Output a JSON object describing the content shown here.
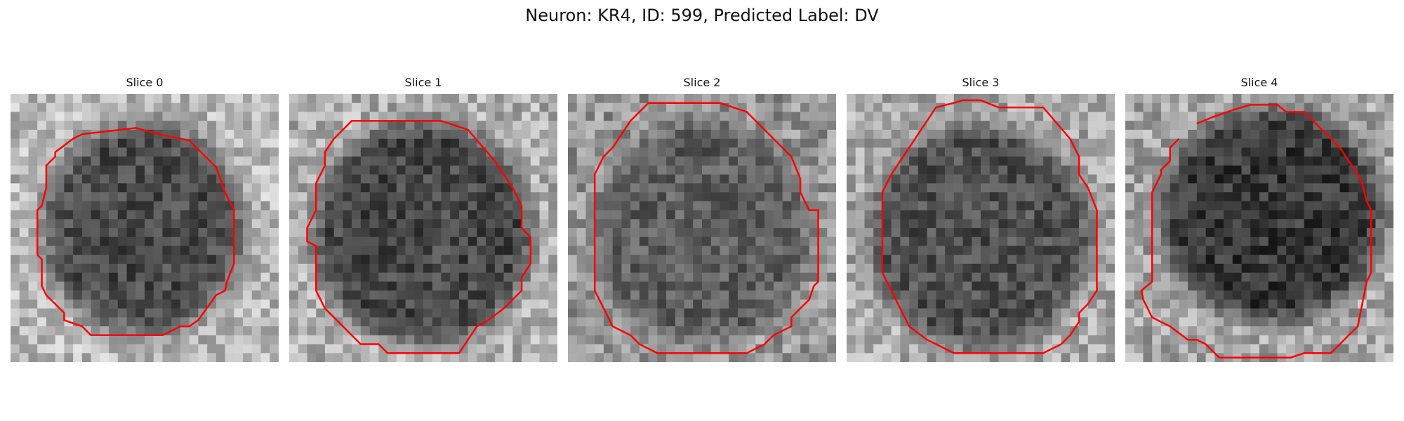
{
  "figure": {
    "title": "Neuron: KR4, ID: 599, Predicted Label: DV"
  },
  "panels": [
    {
      "title": "Slice 0",
      "seed": 11,
      "outline_color": "#ff0000"
    },
    {
      "title": "Slice 1",
      "seed": 23,
      "outline_color": "#ff0000"
    },
    {
      "title": "Slice 2",
      "seed": 37,
      "outline_color": "#ff0000"
    },
    {
      "title": "Slice 3",
      "seed": 51,
      "outline_color": "#ff0000"
    },
    {
      "title": "Slice 4",
      "seed": 67,
      "outline_color": "#ff0000"
    }
  ],
  "colors": {
    "background": "#ffffff",
    "outline": "#ff0000"
  }
}
